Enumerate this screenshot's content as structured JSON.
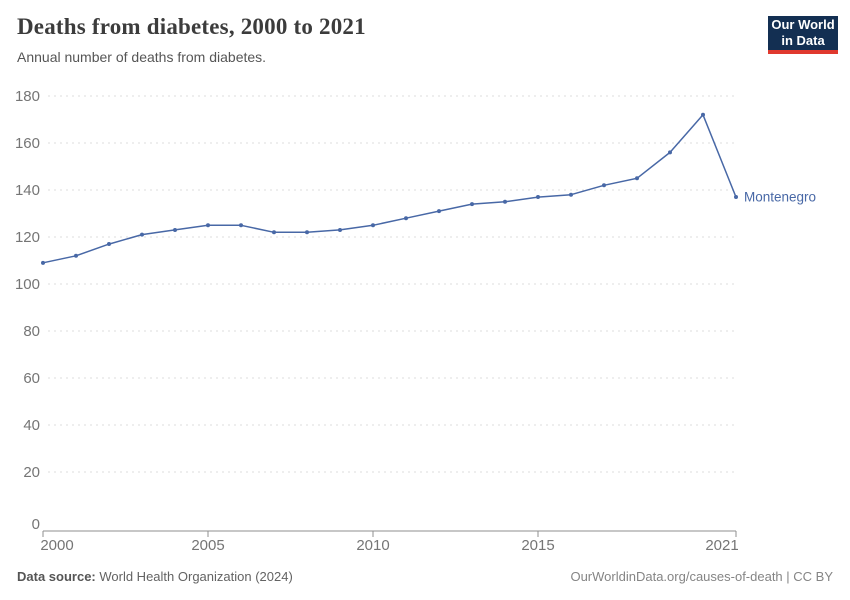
{
  "header": {
    "title": "Deaths from diabetes, 2000 to 2021",
    "subtitle": "Annual number of deaths from diabetes."
  },
  "logo": {
    "line1": "Our World",
    "line2": "in Data",
    "bg_color": "#132F52",
    "bar_color": "#E0392E"
  },
  "chart_data": {
    "type": "line",
    "title": "Deaths from diabetes, 2000 to 2021",
    "xlabel": "",
    "ylabel": "",
    "xlim": [
      2000,
      2021
    ],
    "ylim": [
      0,
      180
    ],
    "grid": "horizontal-dashed",
    "legend_position": "end-of-line-label",
    "x_ticks": [
      2000,
      2005,
      2010,
      2015,
      2021
    ],
    "y_ticks": [
      0,
      20,
      40,
      60,
      80,
      100,
      120,
      140,
      160,
      180
    ],
    "series": [
      {
        "name": "Montenegro",
        "color": "#4868A6",
        "x": [
          2000,
          2001,
          2002,
          2003,
          2004,
          2005,
          2006,
          2007,
          2008,
          2009,
          2010,
          2011,
          2012,
          2013,
          2014,
          2015,
          2016,
          2017,
          2018,
          2019,
          2020,
          2021
        ],
        "values": [
          109,
          112,
          117,
          121,
          123,
          125,
          125,
          122,
          122,
          123,
          125,
          128,
          131,
          134,
          135,
          137,
          138,
          142,
          145,
          156,
          172,
          137
        ]
      }
    ]
  },
  "footer": {
    "source_label": "Data source:",
    "source_value": " World Health Organization (2024)",
    "credit": "OurWorldinData.org/causes-of-death | CC BY"
  }
}
